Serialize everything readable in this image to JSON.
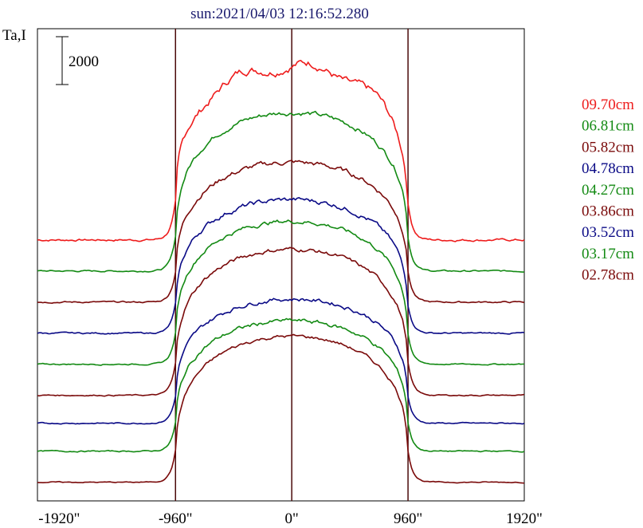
{
  "chart_data": {
    "type": "line",
    "title": "sun:2021/04/03 12:16:52.280",
    "ylabel": "Ta,I",
    "scale_bar_label": "2000",
    "scale_bar_value": 2000,
    "x_unit": "arcsec",
    "xlim": [
      -2100,
      1920
    ],
    "x_ticks": [
      -1920,
      -960,
      0,
      960,
      1920
    ],
    "x_tick_labels": [
      "-1920\"",
      "-960\"",
      "0\"",
      "960\"",
      "1920\""
    ],
    "vertical_lines": [
      -960,
      0,
      960
    ],
    "grid": false,
    "legend_position": "right",
    "series": [
      {
        "name": "09.70cm",
        "color": "#ee1c1c",
        "offset": 3400,
        "peak": 2800,
        "noise": 90
      },
      {
        "name": "06.81cm",
        "color": "#138a13",
        "offset": 2900,
        "peak": 2550,
        "noise": 60
      },
      {
        "name": "05.82cm",
        "color": "#7a0a0a",
        "offset": 2400,
        "peak": 2250,
        "noise": 60
      },
      {
        "name": "04.78cm",
        "color": "#0a0a86",
        "offset": 1900,
        "peak": 2150,
        "noise": 60
      },
      {
        "name": "04.27cm",
        "color": "#138a13",
        "offset": 1400,
        "peak": 2300,
        "noise": 50
      },
      {
        "name": "03.86cm",
        "color": "#7a0a0a",
        "offset": 900,
        "peak": 2350,
        "noise": 50
      },
      {
        "name": "03.52cm",
        "color": "#0a0a86",
        "offset": 450,
        "peak": 2000,
        "noise": 50
      },
      {
        "name": "03.17cm",
        "color": "#138a13",
        "offset": 0,
        "peak": 2100,
        "noise": 50
      },
      {
        "name": "02.78cm",
        "color": "#7a0a0a",
        "offset": -500,
        "peak": 2350,
        "noise": 40
      }
    ],
    "ylim": [
      -800,
      6800
    ]
  }
}
